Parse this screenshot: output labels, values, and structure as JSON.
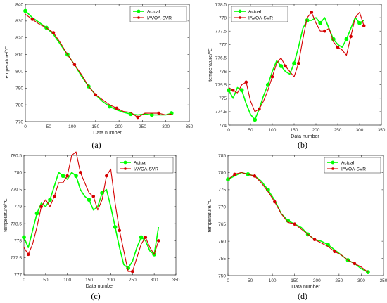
{
  "colors": {
    "actual": "#00ff00",
    "predicted": "#d40000",
    "axis": "#262626",
    "grid": "#e6e6e6"
  },
  "chart_data": [
    {
      "type": "line",
      "panel_label": "(a)",
      "xlabel": "Data number",
      "ylabel": "temperature/℃",
      "xlim": [
        0,
        350
      ],
      "ylim": [
        770,
        840
      ],
      "xticks": [
        0,
        50,
        100,
        150,
        200,
        250,
        300,
        350
      ],
      "yticks": [
        770,
        780,
        790,
        800,
        810,
        820,
        830,
        840
      ],
      "legend_position": "top-right",
      "series": [
        {
          "name": "Actual",
          "color": "#00ff00",
          "marker": "circle",
          "x": [
            0,
            15,
            30,
            45,
            60,
            75,
            90,
            105,
            120,
            135,
            150,
            165,
            180,
            195,
            210,
            225,
            240,
            255,
            270,
            285,
            300,
            312
          ],
          "y": [
            836,
            832,
            829,
            826,
            822,
            816,
            810,
            804,
            797,
            791,
            786,
            782,
            779,
            777,
            775.5,
            774.5,
            774,
            774.5,
            774,
            774,
            774,
            775
          ]
        },
        {
          "name": "IAVOA-SVR",
          "color": "#d40000",
          "marker": "circle",
          "x": [
            0,
            15,
            30,
            45,
            60,
            75,
            90,
            105,
            120,
            135,
            150,
            165,
            180,
            195,
            210,
            225,
            240,
            255,
            270,
            285,
            300,
            312
          ],
          "y": [
            834,
            831,
            828,
            826,
            823,
            817,
            810,
            804,
            798,
            791,
            786,
            783,
            780,
            778,
            776,
            775.5,
            772.5,
            775,
            775,
            775,
            774,
            774.5
          ]
        }
      ]
    },
    {
      "type": "line",
      "panel_label": "(b)",
      "xlabel": "Data number",
      "ylabel": "temperature/℃",
      "xlim": [
        0,
        350
      ],
      "ylim": [
        774,
        778.5
      ],
      "xticks": [
        0,
        50,
        100,
        150,
        200,
        250,
        300,
        350
      ],
      "yticks": [
        774,
        774.5,
        775,
        775.5,
        776,
        776.5,
        777,
        777.5,
        778,
        778.5
      ],
      "legend_position": "top-left",
      "series": [
        {
          "name": "Actual",
          "color": "#00ff00",
          "marker": "circle",
          "x": [
            0,
            10,
            20,
            30,
            40,
            50,
            60,
            70,
            80,
            90,
            100,
            110,
            120,
            130,
            140,
            150,
            160,
            170,
            180,
            190,
            200,
            210,
            220,
            230,
            240,
            250,
            260,
            270,
            280,
            290,
            300,
            310
          ],
          "y": [
            775.3,
            775.0,
            775.4,
            775.3,
            774.8,
            774.4,
            774.2,
            774.6,
            775.1,
            775.5,
            776.0,
            776.4,
            776.2,
            776.0,
            775.9,
            776.3,
            776.9,
            777.6,
            777.9,
            777.9,
            778.0,
            777.8,
            778.0,
            777.6,
            777.2,
            777.0,
            776.9,
            777.2,
            777.6,
            778.0,
            777.8,
            777.9
          ]
        },
        {
          "name": "IAVOA-SVR",
          "color": "#d40000",
          "marker": "circle",
          "x": [
            0,
            10,
            20,
            30,
            40,
            50,
            60,
            70,
            80,
            90,
            100,
            110,
            120,
            130,
            140,
            150,
            160,
            170,
            180,
            190,
            200,
            210,
            220,
            230,
            240,
            250,
            260,
            270,
            280,
            290,
            300,
            310
          ],
          "y": [
            775.4,
            775.3,
            775.2,
            775.5,
            775.6,
            774.9,
            774.5,
            774.6,
            774.9,
            775.3,
            775.8,
            776.3,
            776.5,
            776.2,
            776.0,
            775.8,
            776.3,
            777.2,
            778.0,
            778.2,
            777.8,
            777.5,
            777.5,
            777.6,
            777.1,
            776.9,
            776.8,
            776.6,
            777.3,
            778.0,
            778.2,
            777.7
          ]
        }
      ]
    },
    {
      "type": "line",
      "panel_label": "(c)",
      "xlabel": "Data number",
      "ylabel": "temperature/℃",
      "xlim": [
        0,
        350
      ],
      "ylim": [
        777,
        780.5
      ],
      "xticks": [
        0,
        50,
        100,
        150,
        200,
        250,
        300,
        350
      ],
      "yticks": [
        777,
        777.5,
        778,
        778.5,
        779,
        779.5,
        780,
        780.5
      ],
      "legend_position": "top-right",
      "series": [
        {
          "name": "Actual",
          "color": "#00ff00",
          "marker": "circle",
          "x": [
            0,
            10,
            20,
            30,
            40,
            50,
            60,
            70,
            80,
            90,
            100,
            110,
            120,
            130,
            140,
            150,
            160,
            170,
            180,
            190,
            200,
            210,
            220,
            230,
            240,
            250,
            260,
            270,
            280,
            290,
            300,
            310
          ],
          "y": [
            778.1,
            777.8,
            778.3,
            778.8,
            779.1,
            779.0,
            779.2,
            779.6,
            780.0,
            779.9,
            779.8,
            780.0,
            779.9,
            779.5,
            779.3,
            779.2,
            778.9,
            779.0,
            779.4,
            779.5,
            779.0,
            778.4,
            777.8,
            777.3,
            777.2,
            777.4,
            777.8,
            778.1,
            778.0,
            777.7,
            777.6,
            778.4
          ]
        },
        {
          "name": "IAVOA-SVR",
          "color": "#d40000",
          "marker": "circle",
          "x": [
            0,
            10,
            20,
            30,
            40,
            50,
            60,
            70,
            80,
            90,
            100,
            110,
            120,
            130,
            140,
            150,
            160,
            170,
            180,
            190,
            200,
            210,
            220,
            230,
            240,
            250,
            260,
            270,
            280,
            290,
            300,
            310
          ],
          "y": [
            777.8,
            777.6,
            777.9,
            778.4,
            779.0,
            779.2,
            779.0,
            779.3,
            779.7,
            779.7,
            779.9,
            780.5,
            780.6,
            780.0,
            779.7,
            779.4,
            779.3,
            778.9,
            779.2,
            779.9,
            780.1,
            779.1,
            778.3,
            777.7,
            777.1,
            777.1,
            777.5,
            777.9,
            778.1,
            777.8,
            777.6,
            778.0
          ]
        }
      ]
    },
    {
      "type": "line",
      "panel_label": "(d)",
      "xlabel": "Data number",
      "ylabel": "temperature/℃",
      "xlim": [
        0,
        350
      ],
      "ylim": [
        750,
        785
      ],
      "xticks": [
        0,
        50,
        100,
        150,
        200,
        250,
        300,
        350
      ],
      "yticks": [
        750,
        755,
        760,
        765,
        770,
        775,
        780,
        785
      ],
      "legend_position": "top-right",
      "series": [
        {
          "name": "Actual",
          "color": "#00ff00",
          "marker": "circle",
          "x": [
            0,
            15,
            30,
            45,
            60,
            75,
            90,
            105,
            120,
            135,
            150,
            165,
            180,
            195,
            210,
            225,
            240,
            255,
            270,
            285,
            300,
            315
          ],
          "y": [
            778,
            779,
            780,
            779.5,
            779,
            777.5,
            775,
            772,
            768,
            766,
            765,
            764,
            762,
            760.5,
            760,
            759,
            757.5,
            756,
            754.5,
            753.5,
            752,
            751
          ]
        },
        {
          "name": "IAVOA-SVR",
          "color": "#d40000",
          "marker": "circle",
          "x": [
            0,
            15,
            30,
            45,
            60,
            75,
            90,
            105,
            120,
            135,
            150,
            165,
            180,
            195,
            210,
            225,
            240,
            255,
            270,
            285,
            300,
            315
          ],
          "y": [
            778,
            779.5,
            780,
            779.5,
            779,
            777,
            774.5,
            771.5,
            768,
            765.5,
            765,
            763.5,
            762,
            760.5,
            759.5,
            758.5,
            757,
            756,
            754.5,
            753.5,
            752.5,
            751
          ]
        }
      ]
    }
  ]
}
